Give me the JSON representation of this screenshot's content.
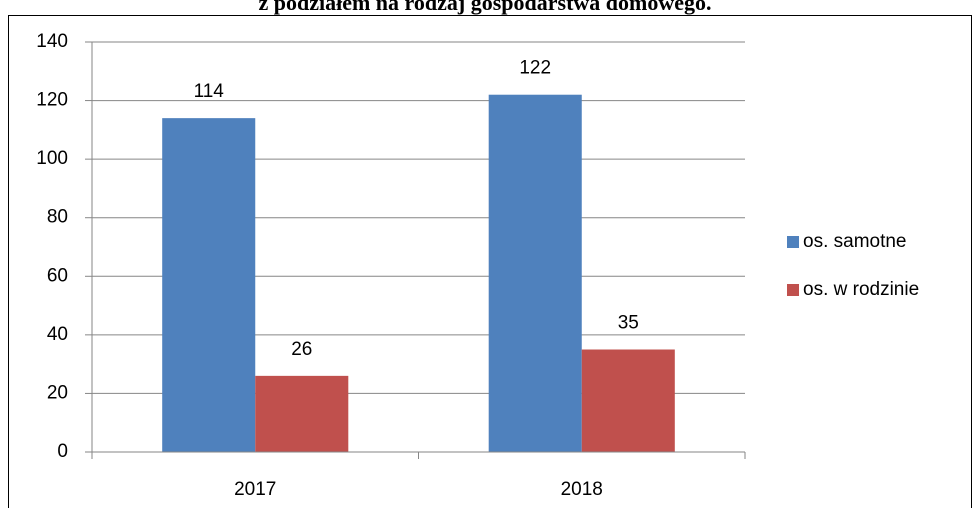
{
  "chart_data": {
    "type": "bar",
    "title": "z podziałem na rodzaj gospodarstwa domowego.",
    "categories": [
      "2017",
      "2018"
    ],
    "series": [
      {
        "name": "os. samotne",
        "color": "#4f81bd",
        "values": [
          114,
          122
        ]
      },
      {
        "name": "os. w rodzinie",
        "color": "#c0504d",
        "values": [
          26,
          35
        ]
      }
    ],
    "ylim": [
      0,
      140
    ],
    "yticks": [
      0,
      20,
      40,
      60,
      80,
      100,
      120,
      140
    ],
    "grid": true,
    "legend": "right"
  }
}
